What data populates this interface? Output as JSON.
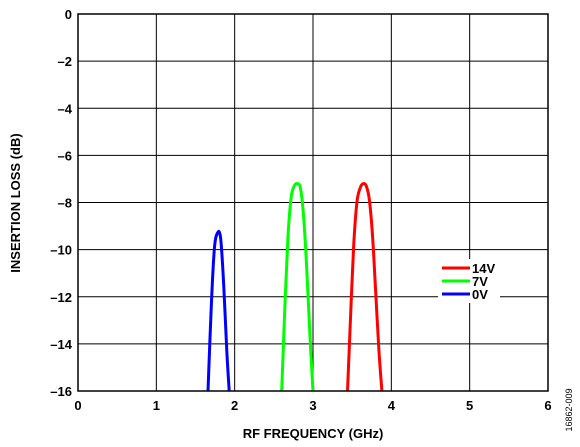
{
  "chart_data": {
    "type": "line",
    "xlabel": "RF FREQUENCY (GHz)",
    "ylabel": "INSERTION LOSS (dB)",
    "xlim": [
      0,
      6
    ],
    "ylim": [
      -16,
      0
    ],
    "xticks": [
      "0",
      "1",
      "2",
      "3",
      "4",
      "5",
      "6"
    ],
    "yticks": [
      "0",
      "–2",
      "–4",
      "–6",
      "–8",
      "–10",
      "–12",
      "–14",
      "–16"
    ],
    "grid": true,
    "legend_position": "right",
    "series": [
      {
        "name": "14V",
        "color": "#ff0000",
        "x": [
          3.44,
          3.48,
          3.52,
          3.56,
          3.6,
          3.64,
          3.68,
          3.72,
          3.76,
          3.8,
          3.84,
          3.88
        ],
        "y": [
          -16.0,
          -12.8,
          -9.8,
          -8.0,
          -7.4,
          -7.2,
          -7.3,
          -7.9,
          -9.4,
          -11.8,
          -14.2,
          -16.0
        ]
      },
      {
        "name": "7V",
        "color": "#00ff00",
        "x": [
          2.6,
          2.64,
          2.68,
          2.72,
          2.76,
          2.8,
          2.84,
          2.88,
          2.92,
          2.96,
          3.0
        ],
        "y": [
          -16.0,
          -12.5,
          -9.5,
          -7.8,
          -7.3,
          -7.2,
          -7.4,
          -8.6,
          -10.8,
          -13.6,
          -16.0
        ]
      },
      {
        "name": "0V",
        "color": "#0000ff",
        "x": [
          1.66,
          1.7,
          1.74,
          1.78,
          1.82,
          1.86,
          1.9,
          1.93
        ],
        "y": [
          -16.0,
          -12.5,
          -10.0,
          -9.3,
          -9.5,
          -11.5,
          -14.3,
          -16.0
        ]
      }
    ]
  },
  "figure_id": "16862-009"
}
